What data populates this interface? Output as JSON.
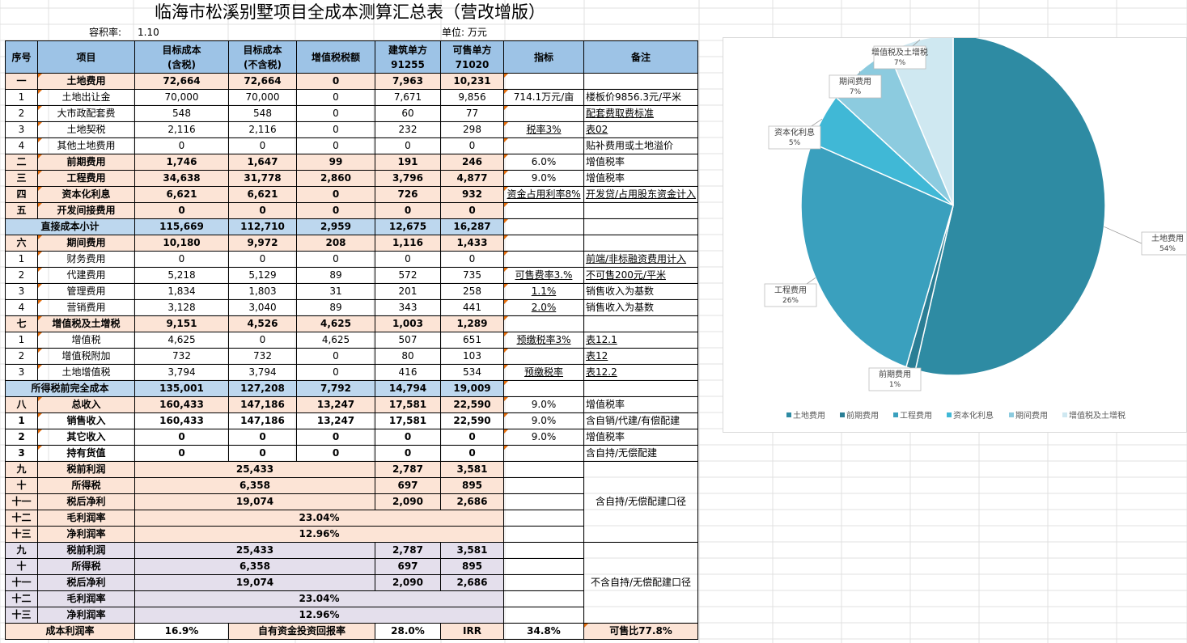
{
  "title": "临海市松溪别墅项目全成本测算汇总表（营改增版）",
  "plot_ratio_label": "容积率:",
  "plot_ratio_value": "1.10",
  "unit_label": "单位: 万元",
  "header": {
    "seq": "序号",
    "item": "项目",
    "target_tax": "目标成本\n(含税)",
    "target_notax": "目标成本\n(不含税)",
    "vat": "增值税税额",
    "build_unit": "建筑单方\n91255",
    "sale_unit": "可售单方\n71020",
    "indicator": "指标",
    "remark": "备注"
  },
  "rows": [
    {
      "style": "pc",
      "bold": true,
      "seq": "一",
      "item": "土地费用",
      "c1": "72,664",
      "c2": "72,664",
      "c3": "0",
      "c4": "7,963",
      "c5": "10,231",
      "ind": "",
      "rem": ""
    },
    {
      "seq": "1",
      "item": "土地出让金",
      "c1": "70,000",
      "c2": "70,000",
      "c3": "0",
      "c4": "7,671",
      "c5": "9,856",
      "ind": "714.1万元/亩",
      "rem": "楼板价9856.3元/平米"
    },
    {
      "seq": "2",
      "item": "大市政配套费",
      "c1": "548",
      "c2": "548",
      "c3": "0",
      "c4": "60",
      "c5": "77",
      "ind": "",
      "rem": "配套费取费标准",
      "remu": true
    },
    {
      "seq": "3",
      "item": "土地契税",
      "c1": "2,116",
      "c2": "2,116",
      "c3": "0",
      "c4": "232",
      "c5": "298",
      "ind": "税率3%",
      "indu": true,
      "rem": "表02",
      "remu": true
    },
    {
      "seq": "4",
      "item": "其他土地费用",
      "c1": "0",
      "c2": "0",
      "c3": "0",
      "c4": "0",
      "c5": "0",
      "ind": "",
      "rem": "贴补费用或土地溢价"
    },
    {
      "style": "pc",
      "bold": true,
      "seq": "二",
      "item": "前期费用",
      "c1": "1,746",
      "c2": "1,647",
      "c3": "99",
      "c4": "191",
      "c5": "246",
      "ind": "6.0%",
      "rem": "增值税率"
    },
    {
      "style": "pc",
      "bold": true,
      "seq": "三",
      "item": "工程费用",
      "c1": "34,638",
      "c2": "31,778",
      "c3": "2,860",
      "c4": "3,796",
      "c5": "4,877",
      "ind": "9.0%",
      "rem": "增值税率"
    },
    {
      "style": "pc",
      "bold": true,
      "seq": "四",
      "item": "资本化利息",
      "c1": "6,621",
      "c2": "6,621",
      "c3": "0",
      "c4": "726",
      "c5": "932",
      "ind": "资金占用利率8%",
      "indu": true,
      "rem": "开发贷/占用股东资金计入",
      "remu": true
    },
    {
      "style": "pc",
      "bold": true,
      "seq": "五",
      "item": "开发间接费用",
      "c1": "0",
      "c2": "0",
      "c3": "0",
      "c4": "0",
      "c5": "0",
      "ind": "",
      "rem": ""
    },
    {
      "style": "bl",
      "bold": true,
      "span": true,
      "item": "直接成本小计",
      "c1": "115,669",
      "c2": "112,710",
      "c3": "2,959",
      "c4": "12,675",
      "c5": "16,287",
      "ind": "",
      "rem": ""
    },
    {
      "style": "pc",
      "bold": true,
      "seq": "六",
      "item": "期间费用",
      "c1": "10,180",
      "c2": "9,972",
      "c3": "208",
      "c4": "1,116",
      "c5": "1,433",
      "ind": "",
      "rem": ""
    },
    {
      "seq": "1",
      "item": "财务费用",
      "c1": "0",
      "c2": "0",
      "c3": "0",
      "c4": "0",
      "c5": "0",
      "ind": "",
      "rem": "前端/非标融资费用计入",
      "remu": true
    },
    {
      "seq": "2",
      "item": "代建费用",
      "c1": "5,218",
      "c2": "5,129",
      "c3": "89",
      "c4": "572",
      "c5": "735",
      "ind": "可售费率3.%",
      "indu": true,
      "rem": "不可售200元/平米",
      "remu": true
    },
    {
      "seq": "3",
      "item": "管理费用",
      "c1": "1,834",
      "c2": "1,803",
      "c3": "31",
      "c4": "201",
      "c5": "258",
      "ind": "1.1%",
      "indu": true,
      "rem": "销售收入为基数"
    },
    {
      "seq": "4",
      "item": "营销费用",
      "c1": "3,128",
      "c2": "3,040",
      "c3": "89",
      "c4": "343",
      "c5": "441",
      "ind": "2.0%",
      "indu": true,
      "rem": "销售收入为基数"
    },
    {
      "style": "pc",
      "bold": true,
      "seq": "七",
      "item": "增值税及土增税",
      "c1": "9,151",
      "c2": "4,526",
      "c3": "4,625",
      "c4": "1,003",
      "c5": "1,289",
      "ind": "",
      "rem": ""
    },
    {
      "seq": "1",
      "item": "增值税",
      "c1": "4,625",
      "c2": "0",
      "c3": "4,625",
      "c4": "507",
      "c5": "651",
      "ind": "预缴税率3%",
      "indu": true,
      "rem": "表12.1",
      "remu": true
    },
    {
      "seq": "2",
      "item": "增值税附加",
      "c1": "732",
      "c2": "732",
      "c3": "0",
      "c4": "80",
      "c5": "103",
      "ind": "",
      "rem": "表12",
      "remu": true
    },
    {
      "seq": "3",
      "item": "土地增值税",
      "c1": "3,794",
      "c2": "3,794",
      "c3": "0",
      "c4": "416",
      "c5": "534",
      "ind": "预缴税率",
      "indu": true,
      "rem": "表12.2",
      "remu": true
    },
    {
      "style": "bl",
      "bold": true,
      "span": true,
      "item": "所得税前完全成本",
      "c1": "135,001",
      "c2": "127,208",
      "c3": "7,792",
      "c4": "14,794",
      "c5": "19,009",
      "ind": "",
      "rem": ""
    },
    {
      "style": "pc",
      "bold": true,
      "seq": "八",
      "item": "总收入",
      "c1": "160,433",
      "c2": "147,186",
      "c3": "13,247",
      "c4": "17,581",
      "c5": "22,590",
      "ind": "9.0%",
      "rem": "增值税率"
    },
    {
      "bold": true,
      "seq": "1",
      "item": "销售收入",
      "c1": "160,433",
      "c2": "147,186",
      "c3": "13,247",
      "c4": "17,581",
      "c5": "22,590",
      "ind": "9.0%",
      "rem": "含自销/代建/有偿配建"
    },
    {
      "bold": true,
      "seq": "2",
      "item": "其它收入",
      "c1": "0",
      "c2": "0",
      "c3": "0",
      "c4": "0",
      "c5": "0",
      "ind": "9.0%",
      "rem": "增值税率"
    },
    {
      "bold": true,
      "seq": "3",
      "item": "持有货值",
      "c1": "0",
      "c2": "0",
      "c3": "0",
      "c4": "0",
      "c5": "0",
      "ind": "",
      "rem": "含自持/无偿配建"
    }
  ],
  "profit_a": {
    "remark": "含自持/无偿配建口径",
    "rows": [
      {
        "seq": "九",
        "item": "税前利润",
        "val": "25,433",
        "c4": "2,787",
        "c5": "3,581"
      },
      {
        "seq": "十",
        "item": "所得税",
        "val": "6,358",
        "c4": "697",
        "c5": "895"
      },
      {
        "seq": "十一",
        "item": "税后净利",
        "val": "19,074",
        "c4": "2,090",
        "c5": "2,686"
      },
      {
        "seq": "十二",
        "item": "毛利润率",
        "val": "23.04%"
      },
      {
        "seq": "十三",
        "item": "净利润率",
        "val": "12.96%"
      }
    ]
  },
  "profit_b": {
    "remark": "不含自持/无偿配建口径",
    "rows": [
      {
        "seq": "九",
        "item": "税前利润",
        "val": "25,433",
        "c4": "2,787",
        "c5": "3,581"
      },
      {
        "seq": "十",
        "item": "所得税",
        "val": "6,358",
        "c4": "697",
        "c5": "895"
      },
      {
        "seq": "十一",
        "item": "税后净利",
        "val": "19,074",
        "c4": "2,090",
        "c5": "2,686"
      },
      {
        "seq": "十二",
        "item": "毛利润率",
        "val": "23.04%"
      },
      {
        "seq": "十三",
        "item": "净利润率",
        "val": "12.96%"
      }
    ]
  },
  "footer": {
    "cost_margin_label": "成本利润率",
    "cost_margin_value": "16.9%",
    "own_fund_label": "自有资金投资回报率",
    "own_fund_value": "28.0%",
    "irr_label": "IRR",
    "irr_value": "34.8%",
    "sale_ratio": "可售比77.8%"
  },
  "colors": {
    "header": "#9DC3E6",
    "peach": "#FCE4D6",
    "blue": "#BDD7EE",
    "lavender": "#E4DFEC"
  },
  "chart_data": {
    "type": "pie",
    "categories": [
      "土地费用",
      "前期费用",
      "工程费用",
      "资本化利息",
      "期间费用",
      "增值税及土增税"
    ],
    "values": [
      54,
      1,
      26,
      5,
      7,
      7
    ],
    "data_labels": [
      "54%",
      "1%",
      "26%",
      "5%",
      "7%",
      "7%"
    ],
    "colors": [
      "#2E8BA3",
      "#2A7E95",
      "#3AA0BE",
      "#40B8D6",
      "#8CCBDF",
      "#CFE8F1"
    ],
    "legend_position": "bottom"
  }
}
